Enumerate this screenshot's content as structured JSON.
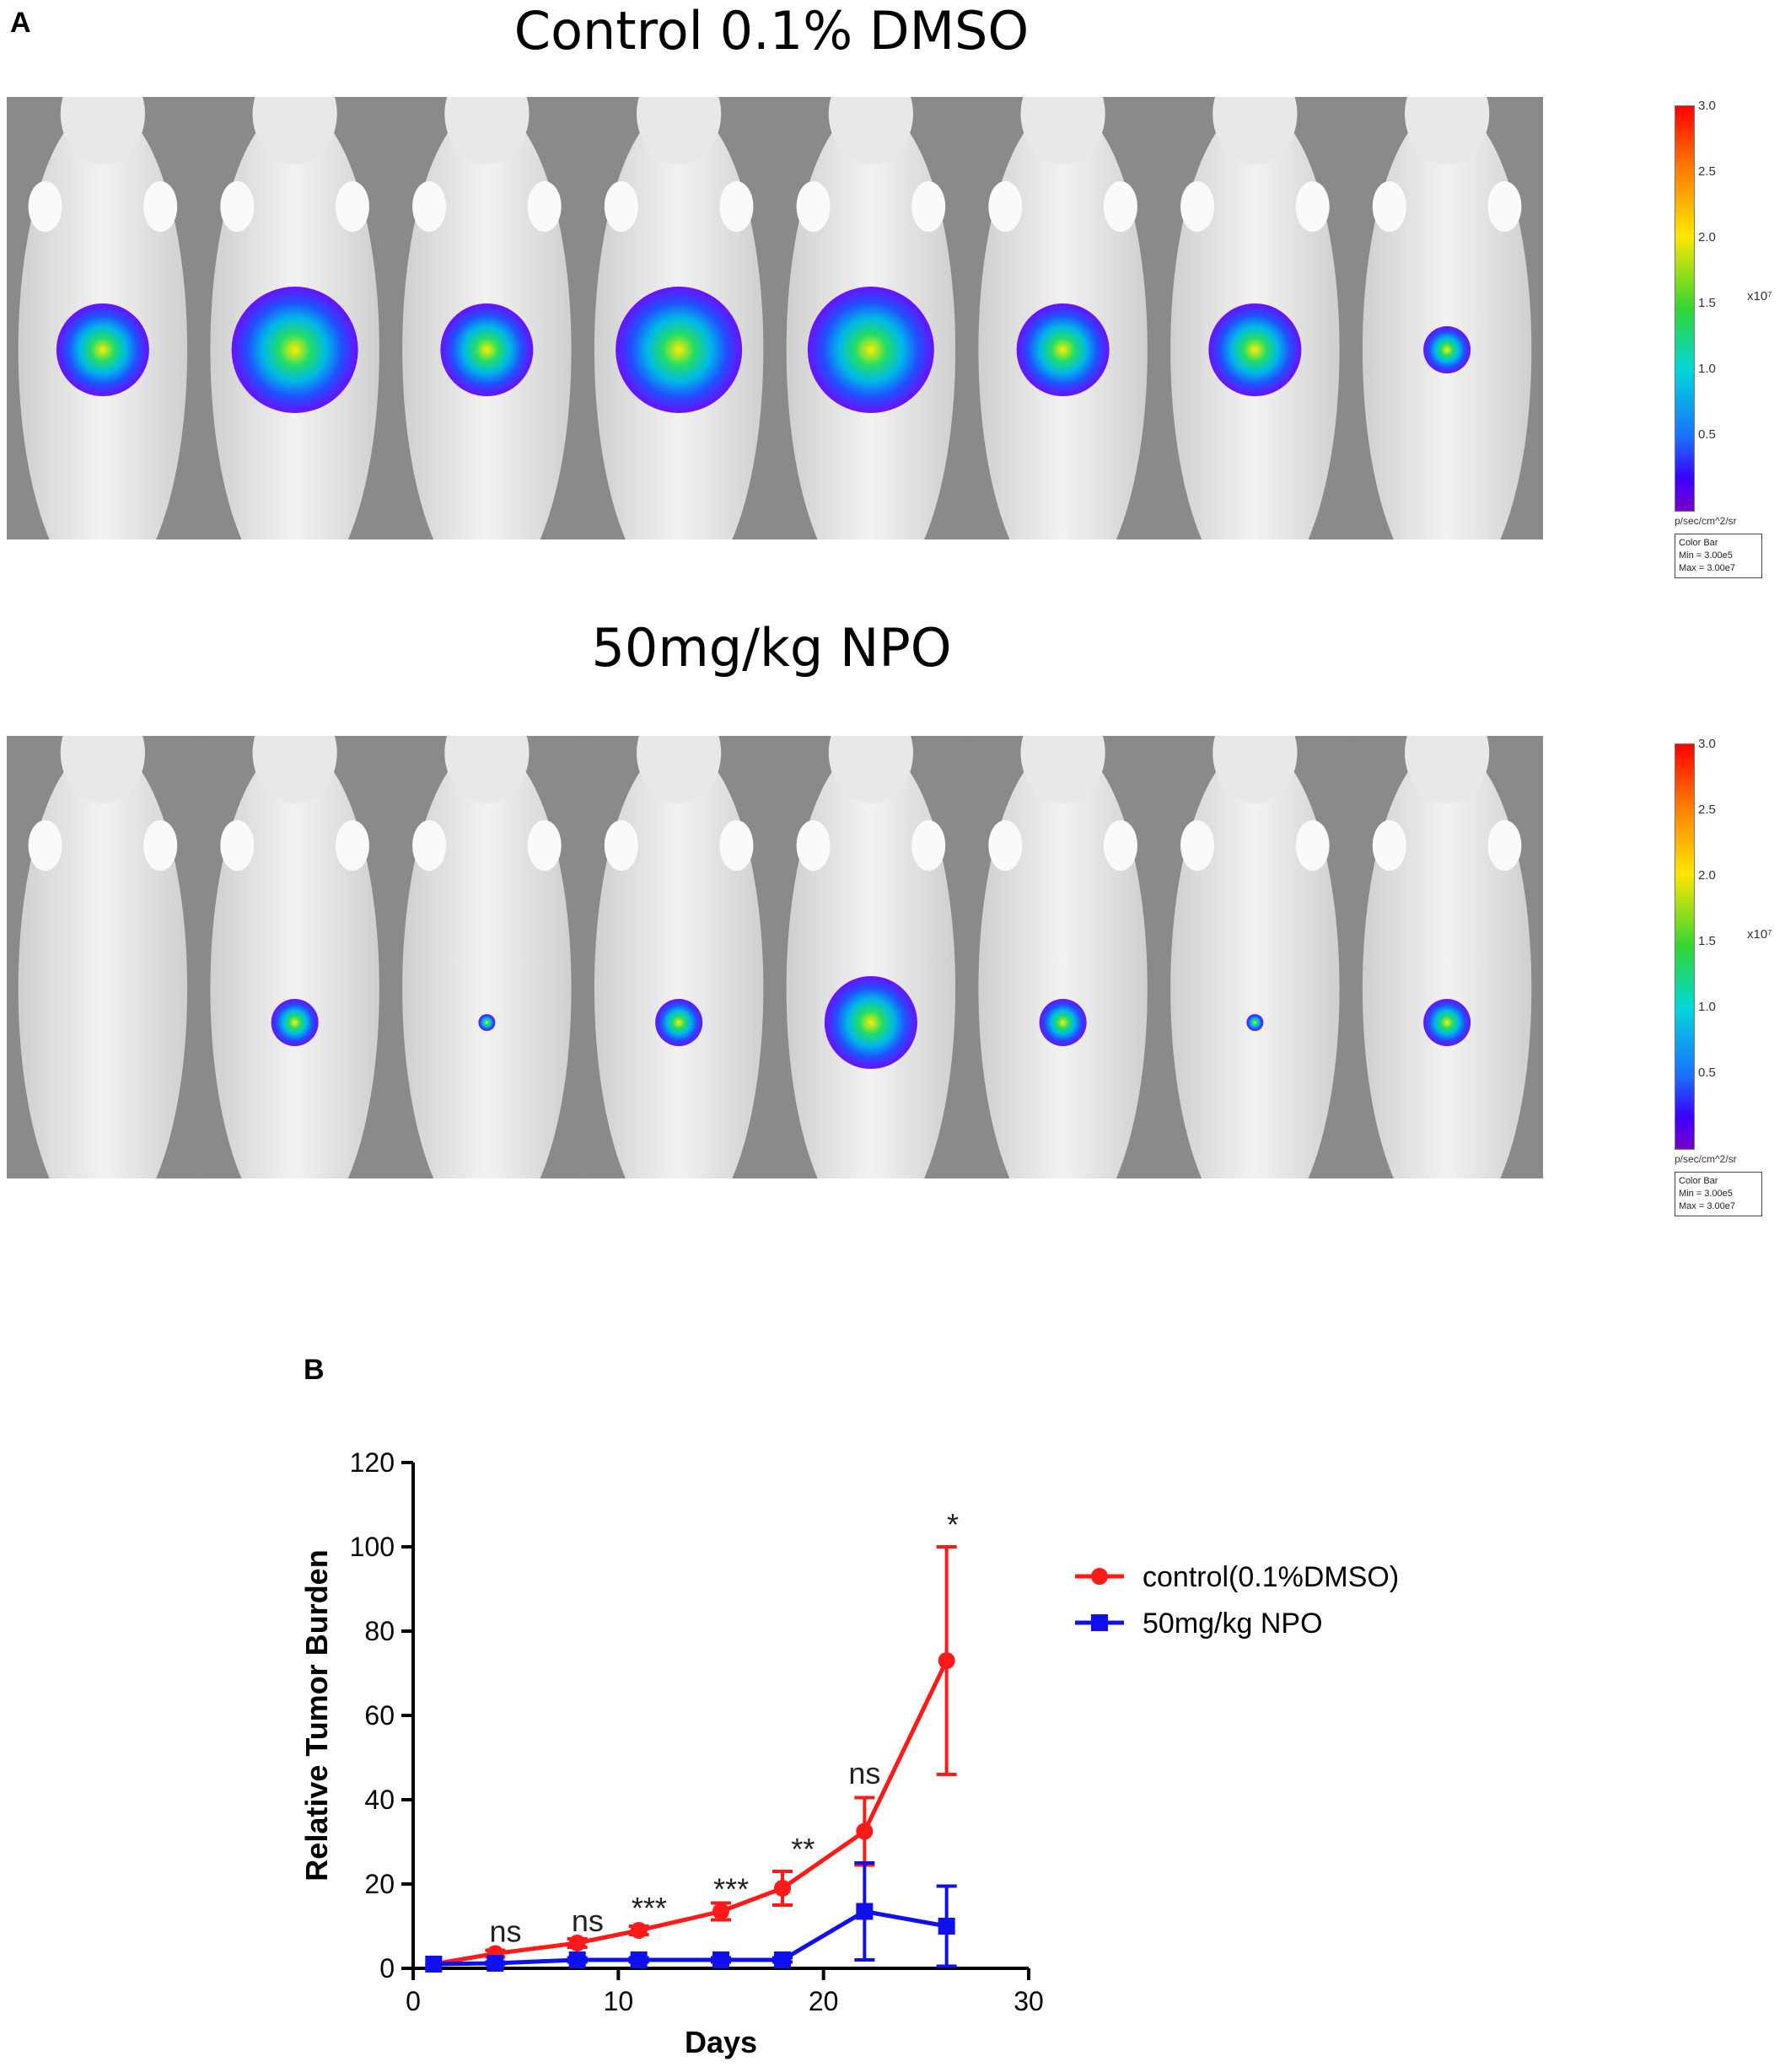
{
  "panel_a": {
    "letter": "A",
    "groups": [
      {
        "title": "Control 0.1% DMSO",
        "mice": [
          {
            "signal": "medium"
          },
          {
            "signal": "high"
          },
          {
            "signal": "medium"
          },
          {
            "signal": "high"
          },
          {
            "signal": "high"
          },
          {
            "signal": "medium"
          },
          {
            "signal": "medium"
          },
          {
            "signal": "low"
          }
        ]
      },
      {
        "title": "50mg/kg NPO",
        "mice": [
          {
            "signal": "none"
          },
          {
            "signal": "low"
          },
          {
            "signal": "trace"
          },
          {
            "signal": "low"
          },
          {
            "signal": "medium"
          },
          {
            "signal": "low"
          },
          {
            "signal": "trace"
          },
          {
            "signal": "low"
          }
        ]
      }
    ],
    "colorbar": {
      "ticks": [
        "3.0",
        "2.5",
        "2.0",
        "1.5",
        "1.0",
        "0.5"
      ],
      "exponent": "x10⁷",
      "unit": "p/sec/cm^2/sr",
      "box_title": "Color Bar",
      "box_min": "Min = 3.00e5",
      "box_max": "Max = 3.00e7"
    }
  },
  "chart_data": {
    "panel_letter": "B",
    "type": "line",
    "title": "",
    "xlabel": "Days",
    "ylabel": "Relative Tumor Burden",
    "xlim": [
      0,
      30
    ],
    "ylim": [
      0,
      120
    ],
    "xticks": [
      0,
      10,
      20,
      30
    ],
    "yticks": [
      0,
      20,
      40,
      60,
      80,
      100,
      120
    ],
    "legend_position": "right",
    "series": [
      {
        "name": "control(0.1%DMSO)",
        "color": "#ff1a1a",
        "marker": "circle",
        "x": [
          1,
          4,
          8,
          11,
          15,
          18,
          22,
          26
        ],
        "y": [
          1,
          3.5,
          6,
          9,
          13.5,
          19,
          32.5,
          73
        ],
        "err": [
          0,
          0.8,
          1,
          1,
          2,
          4,
          8,
          27
        ]
      },
      {
        "name": "50mg/kg NPO",
        "color": "#1010ee",
        "marker": "square",
        "x": [
          1,
          4,
          8,
          11,
          15,
          18,
          22,
          26
        ],
        "y": [
          1,
          1.2,
          2,
          2,
          2,
          2,
          13.5,
          10
        ],
        "err": [
          0,
          0.3,
          0.5,
          0.5,
          0.5,
          0.5,
          11.5,
          9.5
        ]
      }
    ],
    "annotations": [
      {
        "x": 4.5,
        "y": 3.5,
        "text": "ns"
      },
      {
        "x": 8.5,
        "y": 6,
        "text": "ns"
      },
      {
        "x": 11.5,
        "y": 9,
        "text": "***"
      },
      {
        "x": 15.5,
        "y": 13.5,
        "text": "***"
      },
      {
        "x": 19,
        "y": 23,
        "text": "**"
      },
      {
        "x": 22,
        "y": 41,
        "text": "ns"
      },
      {
        "x": 26.3,
        "y": 100,
        "text": "*"
      }
    ]
  }
}
